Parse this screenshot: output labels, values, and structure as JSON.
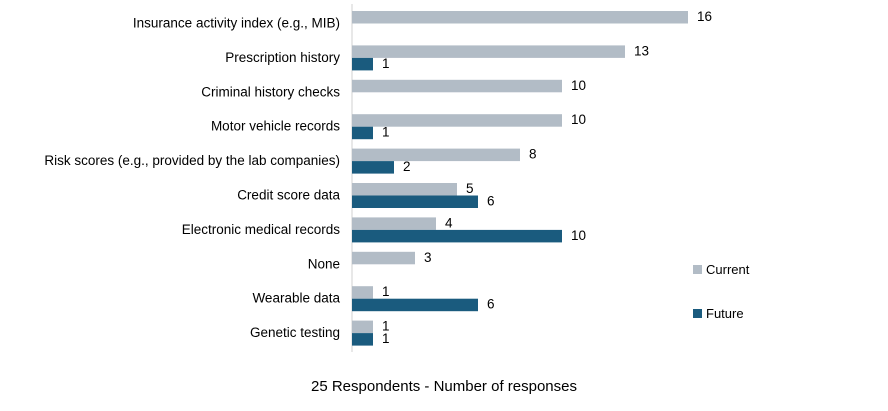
{
  "chart_data": {
    "type": "bar",
    "orientation": "horizontal",
    "categories": [
      "Insurance activity index (e.g., MIB)",
      "Prescription history",
      "Criminal history checks",
      "Motor vehicle records",
      "Risk scores (e.g., provided by the lab companies)",
      "Credit score data",
      "Electronic medical records",
      "None",
      "Wearable data",
      "Genetic testing"
    ],
    "series": [
      {
        "name": "Current",
        "color": "#b2bcc6",
        "values": [
          16,
          13,
          10,
          10,
          8,
          5,
          4,
          3,
          1,
          1
        ]
      },
      {
        "name": "Future",
        "color": "#1a5b7e",
        "values": [
          null,
          1,
          null,
          1,
          2,
          6,
          10,
          null,
          6,
          1
        ]
      }
    ],
    "xlim": [
      0,
      16
    ],
    "xlabel": "25 Respondents - Number of responses",
    "ylabel": "",
    "grid": false,
    "legend_position": "right"
  }
}
